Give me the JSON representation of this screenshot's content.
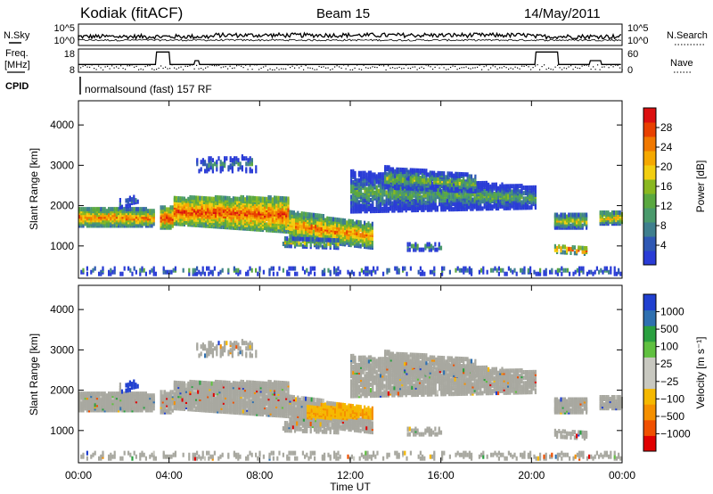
{
  "header": {
    "station": "Kodiak (fitACF)",
    "beam": "Beam 15",
    "date": "14/May/2011"
  },
  "side_labels": {
    "nsky": "N.Sky",
    "freq": "Freq.",
    "freq_unit": "[MHz]",
    "cpid": "CPID",
    "nsearch": "N.Search",
    "nave": "Nave",
    "program": "normalsound (fast) 157 RF"
  },
  "colors": {
    "power": [
      "#2a3cd6",
      "#2f58b4",
      "#3f7f8e",
      "#4a9a6c",
      "#5aa840",
      "#8ab820",
      "#f2ce10",
      "#f5a800",
      "#f07800",
      "#e84000",
      "#dc1010"
    ],
    "velocity": [
      "#e00000",
      "#f05000",
      "#f59000",
      "#f5b800",
      "#c8c8c0",
      "#c8c8c0",
      "#60c040",
      "#2aa040",
      "#2f70b0",
      "#2040d0"
    ],
    "ground": "#a8a8a0"
  },
  "chart_data": [
    {
      "type": "line",
      "name": "nsky-nsearch",
      "left_ticks": [
        "10^5",
        "10^0"
      ],
      "right_ticks": [
        "10^5",
        "10^0"
      ]
    },
    {
      "type": "line",
      "name": "freq-nave",
      "left_ticks": [
        "18",
        "8"
      ],
      "right_ticks": [
        "60",
        "0"
      ]
    },
    {
      "type": "heatmap",
      "name": "power",
      "ylabel": "Slant Range [km]",
      "yticks": [
        1000,
        2000,
        3000,
        4000
      ],
      "ylim": [
        200,
        4600
      ],
      "xlim": [
        0,
        24
      ],
      "colorbar_label": "Power [dB]",
      "colorbar_ticks": [
        "28",
        "24",
        "20",
        "16",
        "12",
        "8",
        "4"
      ],
      "colorbar_range": [
        0,
        32
      ]
    },
    {
      "type": "heatmap",
      "name": "velocity",
      "ylabel": "Slant Range [km]",
      "yticks": [
        1000,
        2000,
        3000,
        4000
      ],
      "ylim": [
        200,
        4600
      ],
      "xlim": [
        0,
        24
      ],
      "colorbar_label": "Velocity [m s⁻¹]",
      "colorbar_ticks": [
        "1000",
        "500",
        "100",
        "25",
        "−25",
        "−100",
        "−500",
        "−1000"
      ]
    }
  ],
  "xaxis": {
    "label": "Time UT",
    "ticks": [
      "00:00",
      "04:00",
      "08:00",
      "12:00",
      "16:00",
      "20:00",
      "00:00"
    ]
  }
}
